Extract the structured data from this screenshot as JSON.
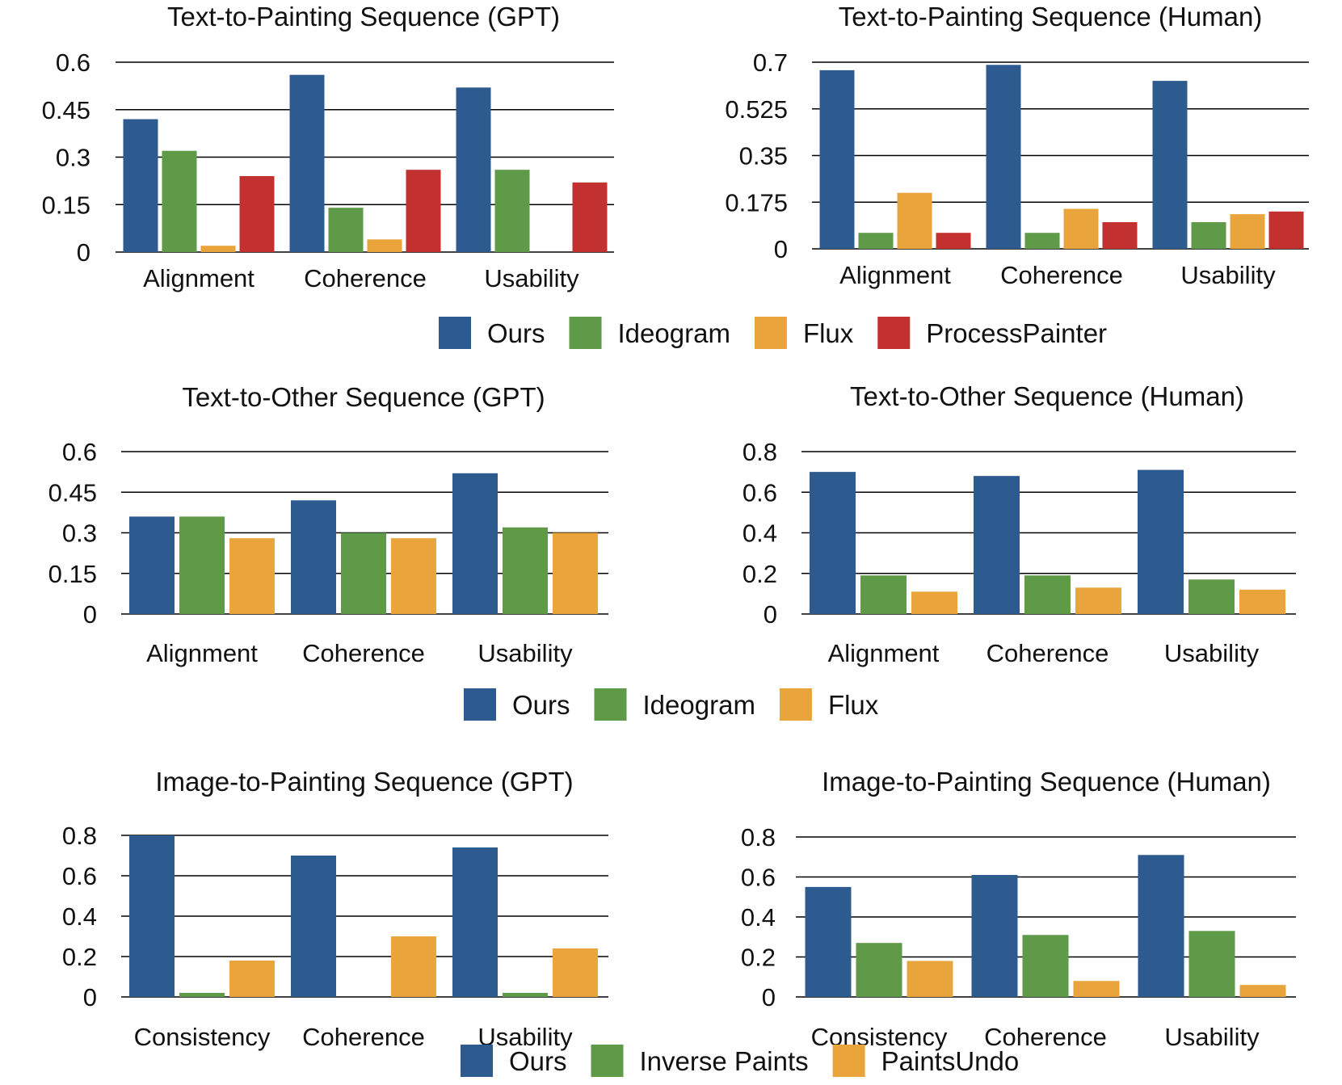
{
  "colors": {
    "ours": "#2e5b8f",
    "green": "#5e9a48",
    "orange": "#e9a53c",
    "red": "#c2302f"
  },
  "legends": [
    {
      "items": [
        {
          "label": "Ours",
          "color": "#2e5b8f"
        },
        {
          "label": "Ideogram",
          "color": "#5e9a48"
        },
        {
          "label": "Flux",
          "color": "#e9a53c"
        },
        {
          "label": "ProcessPainter",
          "color": "#c2302f"
        }
      ]
    },
    {
      "items": [
        {
          "label": "Ours",
          "color": "#2e5b8f"
        },
        {
          "label": "Ideogram",
          "color": "#5e9a48"
        },
        {
          "label": "Flux",
          "color": "#e9a53c"
        }
      ]
    },
    {
      "items": [
        {
          "label": "Ours",
          "color": "#2e5b8f"
        },
        {
          "label": "Inverse Paints",
          "color": "#5e9a48"
        },
        {
          "label": "PaintsUndo",
          "color": "#e9a53c"
        }
      ]
    }
  ],
  "chart_data": [
    {
      "type": "bar",
      "title": "Text-to-Painting Sequence (GPT)",
      "categories": [
        "Alignment",
        "Coherence",
        "Usability"
      ],
      "yticks": [
        "0",
        "0.15",
        "0.3",
        "0.45",
        "0.6"
      ],
      "ylim": [
        0,
        0.6
      ],
      "series": [
        {
          "name": "Ours",
          "color": "#2e5b8f",
          "values": [
            0.42,
            0.56,
            0.52
          ]
        },
        {
          "name": "Ideogram",
          "color": "#5e9a48",
          "values": [
            0.32,
            0.14,
            0.26
          ]
        },
        {
          "name": "Flux",
          "color": "#e9a53c",
          "values": [
            0.02,
            0.04,
            0.0
          ]
        },
        {
          "name": "ProcessPainter",
          "color": "#c2302f",
          "values": [
            0.24,
            0.26,
            0.22
          ]
        }
      ]
    },
    {
      "type": "bar",
      "title": "Text-to-Painting Sequence (Human)",
      "categories": [
        "Alignment",
        "Coherence",
        "Usability"
      ],
      "yticks": [
        "0",
        "0.175",
        "0.35",
        "0.525",
        "0.7"
      ],
      "ylim": [
        0,
        0.7
      ],
      "series": [
        {
          "name": "Ours",
          "color": "#2e5b8f",
          "values": [
            0.67,
            0.69,
            0.63
          ]
        },
        {
          "name": "Ideogram",
          "color": "#5e9a48",
          "values": [
            0.06,
            0.06,
            0.1
          ]
        },
        {
          "name": "Flux",
          "color": "#e9a53c",
          "values": [
            0.21,
            0.15,
            0.13
          ]
        },
        {
          "name": "ProcessPainter",
          "color": "#c2302f",
          "values": [
            0.06,
            0.1,
            0.14
          ]
        }
      ]
    },
    {
      "type": "bar",
      "title": "Text-to-Other Sequence (GPT)",
      "categories": [
        "Alignment",
        "Coherence",
        "Usability"
      ],
      "yticks": [
        "0",
        "0.15",
        "0.3",
        "0.45",
        "0.6"
      ],
      "ylim": [
        0,
        0.6
      ],
      "series": [
        {
          "name": "Ours",
          "color": "#2e5b8f",
          "values": [
            0.36,
            0.42,
            0.52
          ]
        },
        {
          "name": "Ideogram",
          "color": "#5e9a48",
          "values": [
            0.36,
            0.3,
            0.32
          ]
        },
        {
          "name": "Flux",
          "color": "#e9a53c",
          "values": [
            0.28,
            0.28,
            0.3
          ]
        }
      ]
    },
    {
      "type": "bar",
      "title": "Text-to-Other Sequence (Human)",
      "categories": [
        "Alignment",
        "Coherence",
        "Usability"
      ],
      "yticks": [
        "0",
        "0.2",
        "0.4",
        "0.6",
        "0.8"
      ],
      "ylim": [
        0,
        0.8
      ],
      "series": [
        {
          "name": "Ours",
          "color": "#2e5b8f",
          "values": [
            0.7,
            0.68,
            0.71
          ]
        },
        {
          "name": "Ideogram",
          "color": "#5e9a48",
          "values": [
            0.19,
            0.19,
            0.17
          ]
        },
        {
          "name": "Flux",
          "color": "#e9a53c",
          "values": [
            0.11,
            0.13,
            0.12
          ]
        }
      ]
    },
    {
      "type": "bar",
      "title": "Image-to-Painting Sequence (GPT)",
      "categories": [
        "Consistency",
        "Coherence",
        "Usability"
      ],
      "yticks": [
        "0",
        "0.2",
        "0.4",
        "0.6",
        "0.8"
      ],
      "ylim": [
        0,
        0.8
      ],
      "series": [
        {
          "name": "Ours",
          "color": "#2e5b8f",
          "values": [
            0.8,
            0.7,
            0.74
          ]
        },
        {
          "name": "Inverse Paints",
          "color": "#5e9a48",
          "values": [
            0.02,
            0.0,
            0.02
          ]
        },
        {
          "name": "PaintsUndo",
          "color": "#e9a53c",
          "values": [
            0.18,
            0.3,
            0.24
          ]
        }
      ]
    },
    {
      "type": "bar",
      "title": "Image-to-Painting Sequence (Human)",
      "categories": [
        "Consistency",
        "Coherence",
        "Usability"
      ],
      "yticks": [
        "0",
        "0.2",
        "0.4",
        "0.6",
        "0.8"
      ],
      "ylim": [
        0,
        0.8
      ],
      "series": [
        {
          "name": "Ours",
          "color": "#2e5b8f",
          "values": [
            0.55,
            0.61,
            0.71
          ]
        },
        {
          "name": "Inverse Paints",
          "color": "#5e9a48",
          "values": [
            0.27,
            0.31,
            0.33
          ]
        },
        {
          "name": "PaintsUndo",
          "color": "#e9a53c",
          "values": [
            0.18,
            0.08,
            0.06
          ]
        }
      ]
    }
  ]
}
